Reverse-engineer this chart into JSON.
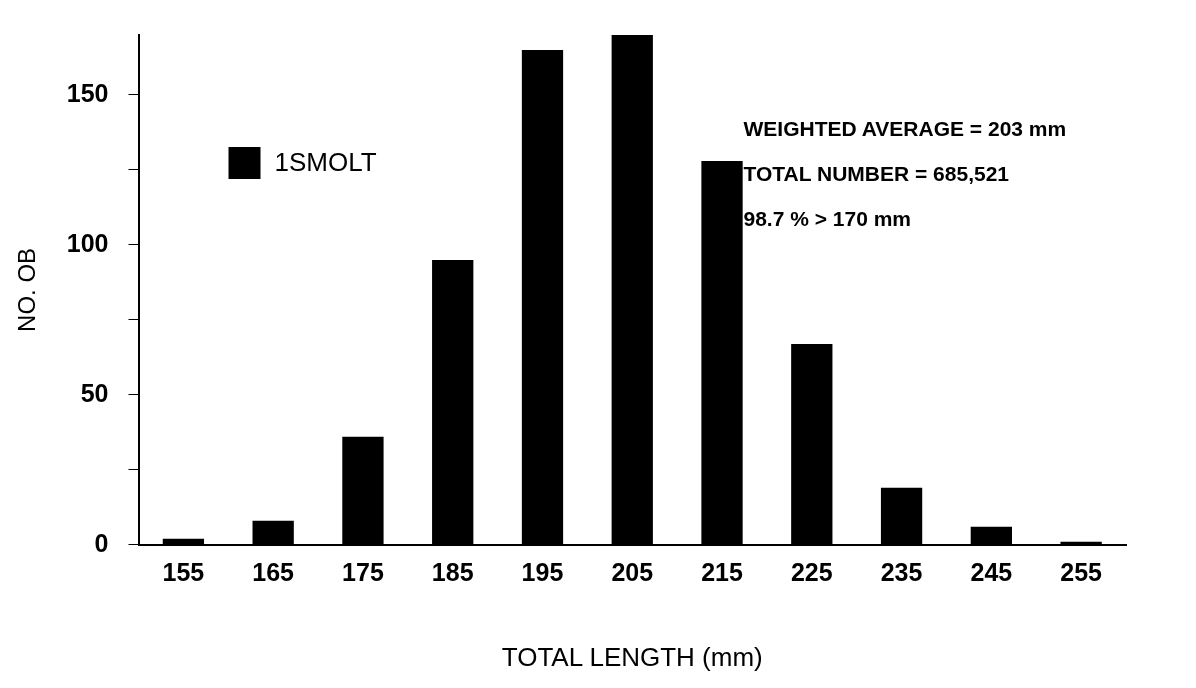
{
  "chart_data": {
    "type": "bar",
    "xlabel": "TOTAL LENGTH (mm)",
    "ylabel": "NO. OB",
    "categories": [
      "155",
      "165",
      "175",
      "185",
      "195",
      "205",
      "215",
      "225",
      "235",
      "245",
      "255"
    ],
    "series": [
      {
        "name": "1SMOLT",
        "color": "#000000",
        "values": [
          2,
          8,
          36,
          95,
          165,
          170,
          128,
          67,
          19,
          6,
          1
        ]
      }
    ],
    "ylim": [
      0,
      170
    ],
    "yticks": [
      0,
      {
        "value": 25,
        "label": null
      },
      50,
      {
        "value": 75,
        "label": null
      },
      100,
      {
        "value": 125,
        "label": null
      },
      150
    ],
    "legend": "top left",
    "grid": false,
    "annotations": [
      "WEIGHTED AVERAGE = 203 mm",
      "TOTAL NUMBER = 685,521",
      "98.7 % > 170 mm"
    ]
  }
}
